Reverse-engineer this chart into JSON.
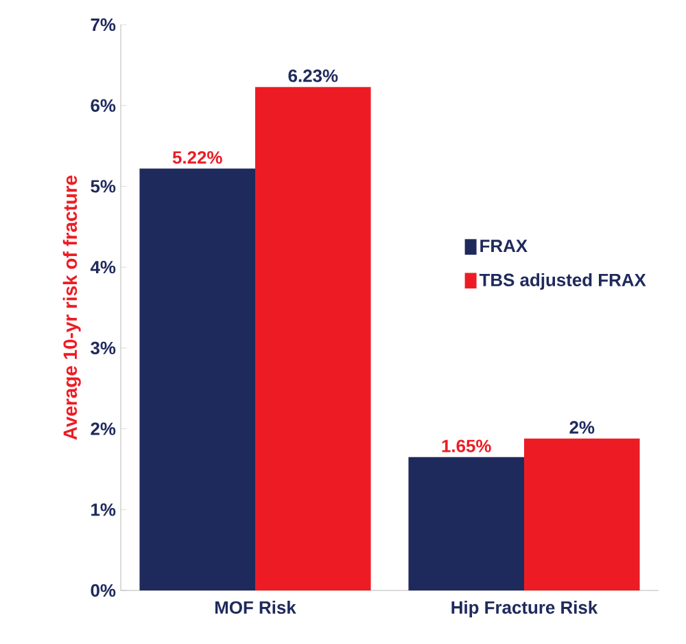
{
  "chart_data": {
    "type": "bar",
    "ylabel": "Average 10-yr risk of fracture",
    "categories": [
      "MOF Risk",
      "Hip Fracture Risk"
    ],
    "series": [
      {
        "name": "FRAX",
        "color": "#1f2a5c",
        "values": [
          5.22,
          1.65
        ],
        "value_labels": [
          "5.22%",
          "1.65%"
        ]
      },
      {
        "name": "TBS adjusted FRAX",
        "color": "#ed1c24",
        "values": [
          6.23,
          1.88
        ],
        "value_labels": [
          "6.23%",
          "2%"
        ]
      }
    ],
    "ylim": [
      0,
      7
    ],
    "yticks": [
      {
        "value": 0,
        "label": "0%"
      },
      {
        "value": 1,
        "label": "1%"
      },
      {
        "value": 2,
        "label": "2%"
      },
      {
        "value": 3,
        "label": "3%"
      },
      {
        "value": 4,
        "label": "4%"
      },
      {
        "value": 5,
        "label": "5%"
      },
      {
        "value": 6,
        "label": "6%"
      },
      {
        "value": 7,
        "label": "7%"
      }
    ],
    "legend": "right"
  }
}
